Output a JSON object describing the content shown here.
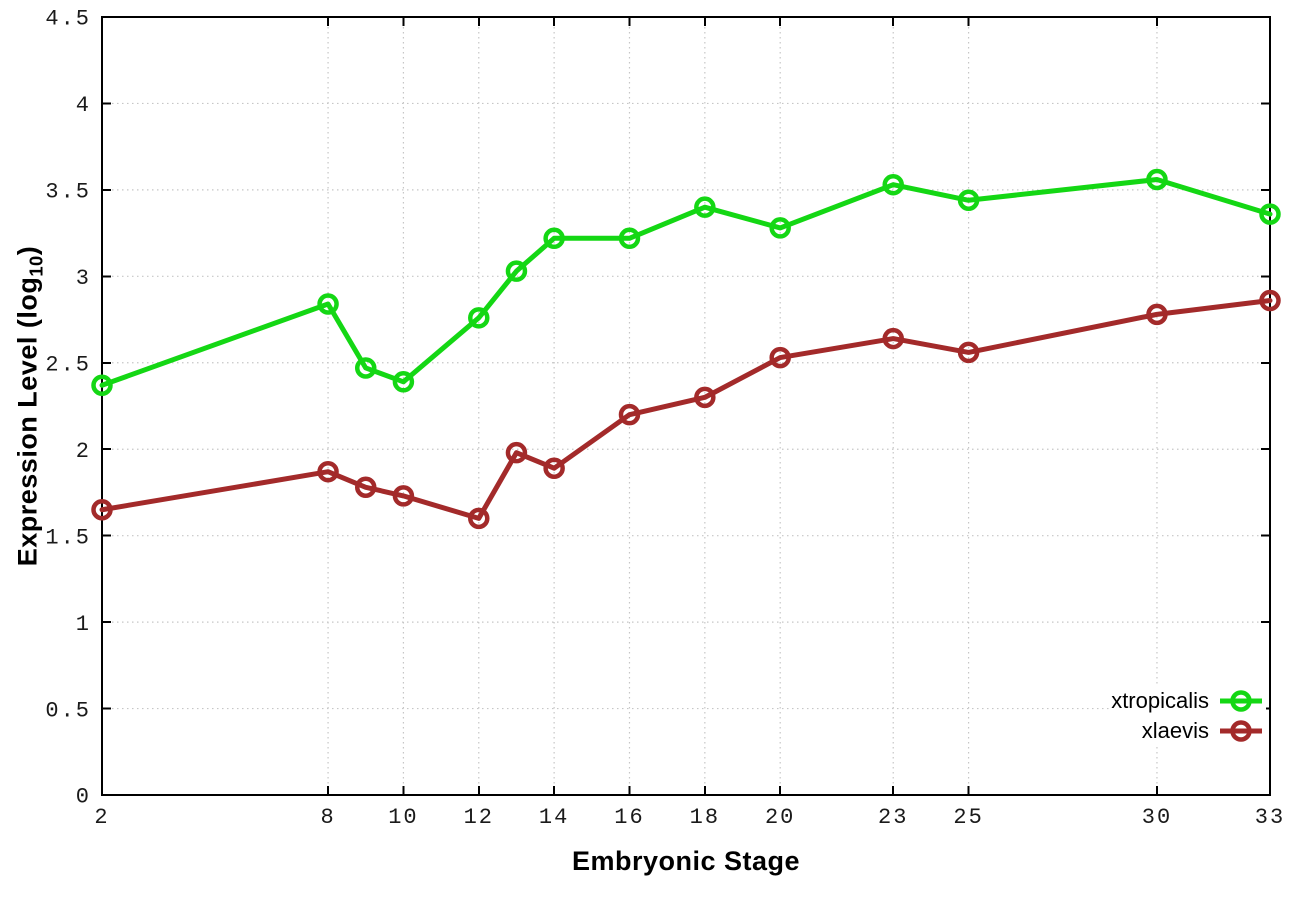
{
  "chart_data": {
    "type": "line",
    "title": "",
    "xlabel": "Embryonic Stage",
    "ylabel": "Expression Level (log10)",
    "ylabel_parts": {
      "main": "Expression Level (log",
      "sub": "10",
      "close": ")"
    },
    "xlim": [
      2,
      33
    ],
    "ylim": [
      0,
      4.5
    ],
    "grid": true,
    "legend_position": "bottom-right",
    "background": "#ffffff",
    "axis_color": "#000000",
    "grid_color": "#c6c6c6",
    "tick_label_color": "#1a1a1a",
    "x_tick_values": [
      2,
      8,
      10,
      12,
      14,
      16,
      18,
      20,
      23,
      25,
      30,
      33
    ],
    "x_tick_labels": [
      "2",
      "8",
      "10",
      "12",
      "14",
      "16",
      "18",
      "20",
      "23",
      "25",
      "30",
      "33"
    ],
    "y_tick_values": [
      0,
      0.5,
      1,
      1.5,
      2,
      2.5,
      3,
      3.5,
      4,
      4.5
    ],
    "y_tick_labels": [
      "0",
      "0.5",
      "1",
      "1.5",
      "2",
      "2.5",
      "3",
      "3.5",
      "4",
      "4.5"
    ],
    "x": [
      2,
      8,
      9,
      10,
      12,
      13,
      14,
      16,
      18,
      20,
      23,
      25,
      30,
      33
    ],
    "series": [
      {
        "name": "xtropicalis",
        "color": "#14d714",
        "marker": "open-circle",
        "values": [
          2.37,
          2.84,
          2.47,
          2.39,
          2.76,
          3.03,
          3.22,
          3.22,
          3.4,
          3.28,
          3.53,
          3.44,
          3.56,
          3.36
        ]
      },
      {
        "name": "xlaevis",
        "color": "#a32a2a",
        "marker": "open-circle",
        "values": [
          1.65,
          1.87,
          1.78,
          1.73,
          1.6,
          1.98,
          1.89,
          2.2,
          2.3,
          2.53,
          2.64,
          2.56,
          2.78,
          2.86
        ]
      }
    ]
  }
}
